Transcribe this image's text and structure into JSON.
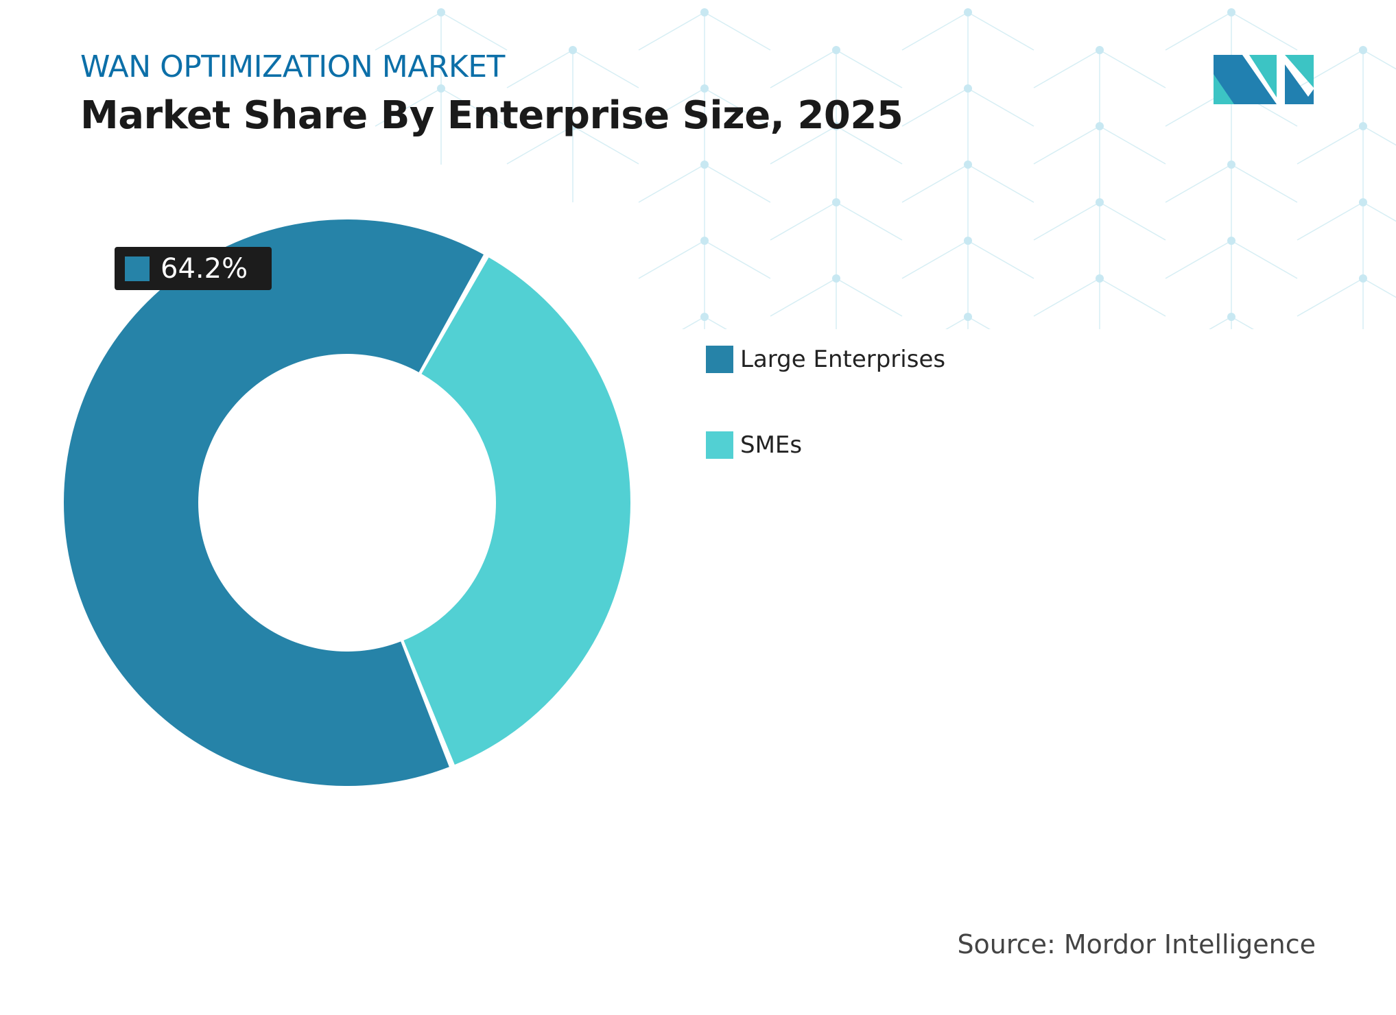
{
  "header": {
    "subtitle": "WAN OPTIMIZATION MARKET",
    "title": "Market Share By Enterprise Size, 2025"
  },
  "chart_data": {
    "type": "pie",
    "donut": true,
    "categories": [
      "Large Enterprises",
      "SMEs"
    ],
    "values": [
      64.2,
      35.8
    ],
    "colors": [
      "#2683a8",
      "#52d0d3"
    ],
    "data_labels": [
      {
        "category": "Large Enterprises",
        "text": "64.2%"
      }
    ],
    "legend_placement": "right"
  },
  "source": "Source: Mordor Intelligence",
  "logo": {
    "text": "Mordor Intelligence",
    "colors": [
      "#2180b0",
      "#3cc4c4"
    ]
  }
}
